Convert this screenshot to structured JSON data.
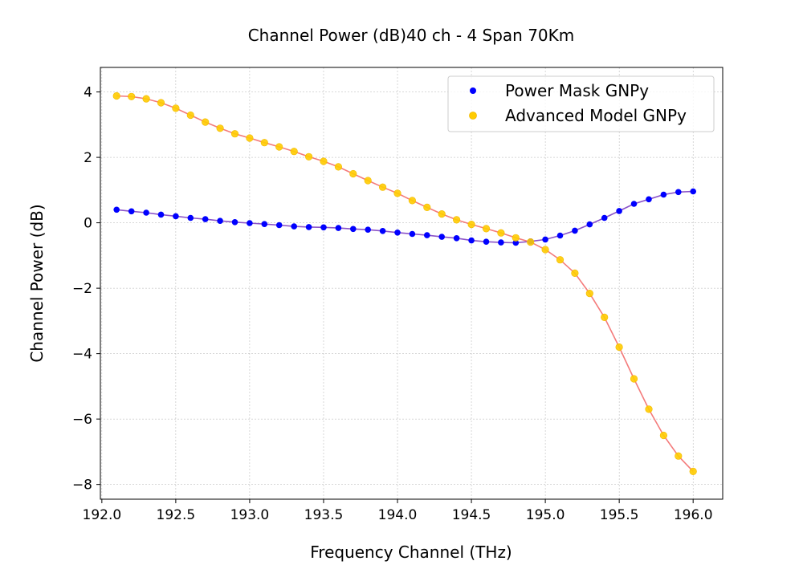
{
  "chart_data": {
    "type": "scatter",
    "title": "Channel Power (dB)40 ch - 4 Span 70Km",
    "xlabel": "Frequency Channel (THz)",
    "ylabel": "Channel Power (dB)",
    "xlim": [
      191.99,
      196.2
    ],
    "ylim": [
      -8.45,
      4.75
    ],
    "xticks": [
      192.0,
      192.5,
      193.0,
      193.5,
      194.0,
      194.5,
      195.0,
      195.5,
      196.0
    ],
    "xtick_labels": [
      "192.0",
      "192.5",
      "193.0",
      "193.5",
      "194.0",
      "194.5",
      "195.0",
      "195.5",
      "196.0"
    ],
    "yticks": [
      4,
      2,
      0,
      -2,
      -4,
      -6,
      -8
    ],
    "ytick_labels": [
      "4",
      "2",
      "0",
      "−2",
      "−4",
      "−6",
      "−8"
    ],
    "grid": true,
    "legend_position": "top-right",
    "x": [
      192.1,
      192.2,
      192.3,
      192.4,
      192.5,
      192.6,
      192.7,
      192.8,
      192.9,
      193.0,
      193.1,
      193.2,
      193.3,
      193.4,
      193.5,
      193.6,
      193.7,
      193.8,
      193.9,
      194.0,
      194.1,
      194.2,
      194.3,
      194.4,
      194.5,
      194.6,
      194.7,
      194.8,
      194.9,
      195.0,
      195.1,
      195.2,
      195.3,
      195.4,
      195.5,
      195.6,
      195.7,
      195.8,
      195.9,
      196.0
    ],
    "series": [
      {
        "name": "Power Mask GNPy",
        "color": "#0000ff",
        "line_color": "#8a52c8",
        "values": [
          0.4,
          0.35,
          0.31,
          0.25,
          0.2,
          0.15,
          0.11,
          0.06,
          0.02,
          -0.01,
          -0.04,
          -0.07,
          -0.11,
          -0.13,
          -0.14,
          -0.16,
          -0.19,
          -0.21,
          -0.25,
          -0.3,
          -0.34,
          -0.38,
          -0.43,
          -0.47,
          -0.54,
          -0.58,
          -0.6,
          -0.61,
          -0.57,
          -0.51,
          -0.39,
          -0.24,
          -0.05,
          0.15,
          0.36,
          0.58,
          0.72,
          0.86,
          0.94,
          0.96
        ]
      },
      {
        "name": "Advanced Model GNPy",
        "color": "#ffcc00",
        "line_color": "#f47b7b",
        "values": [
          3.88,
          3.86,
          3.79,
          3.67,
          3.5,
          3.29,
          3.08,
          2.89,
          2.72,
          2.59,
          2.45,
          2.32,
          2.18,
          2.02,
          1.88,
          1.71,
          1.5,
          1.29,
          1.09,
          0.9,
          0.68,
          0.47,
          0.27,
          0.09,
          -0.05,
          -0.18,
          -0.31,
          -0.46,
          -0.59,
          -0.82,
          -1.13,
          -1.54,
          -2.16,
          -2.89,
          -3.8,
          -4.77,
          -5.7,
          -6.5,
          -7.13,
          -7.6
        ]
      }
    ]
  }
}
